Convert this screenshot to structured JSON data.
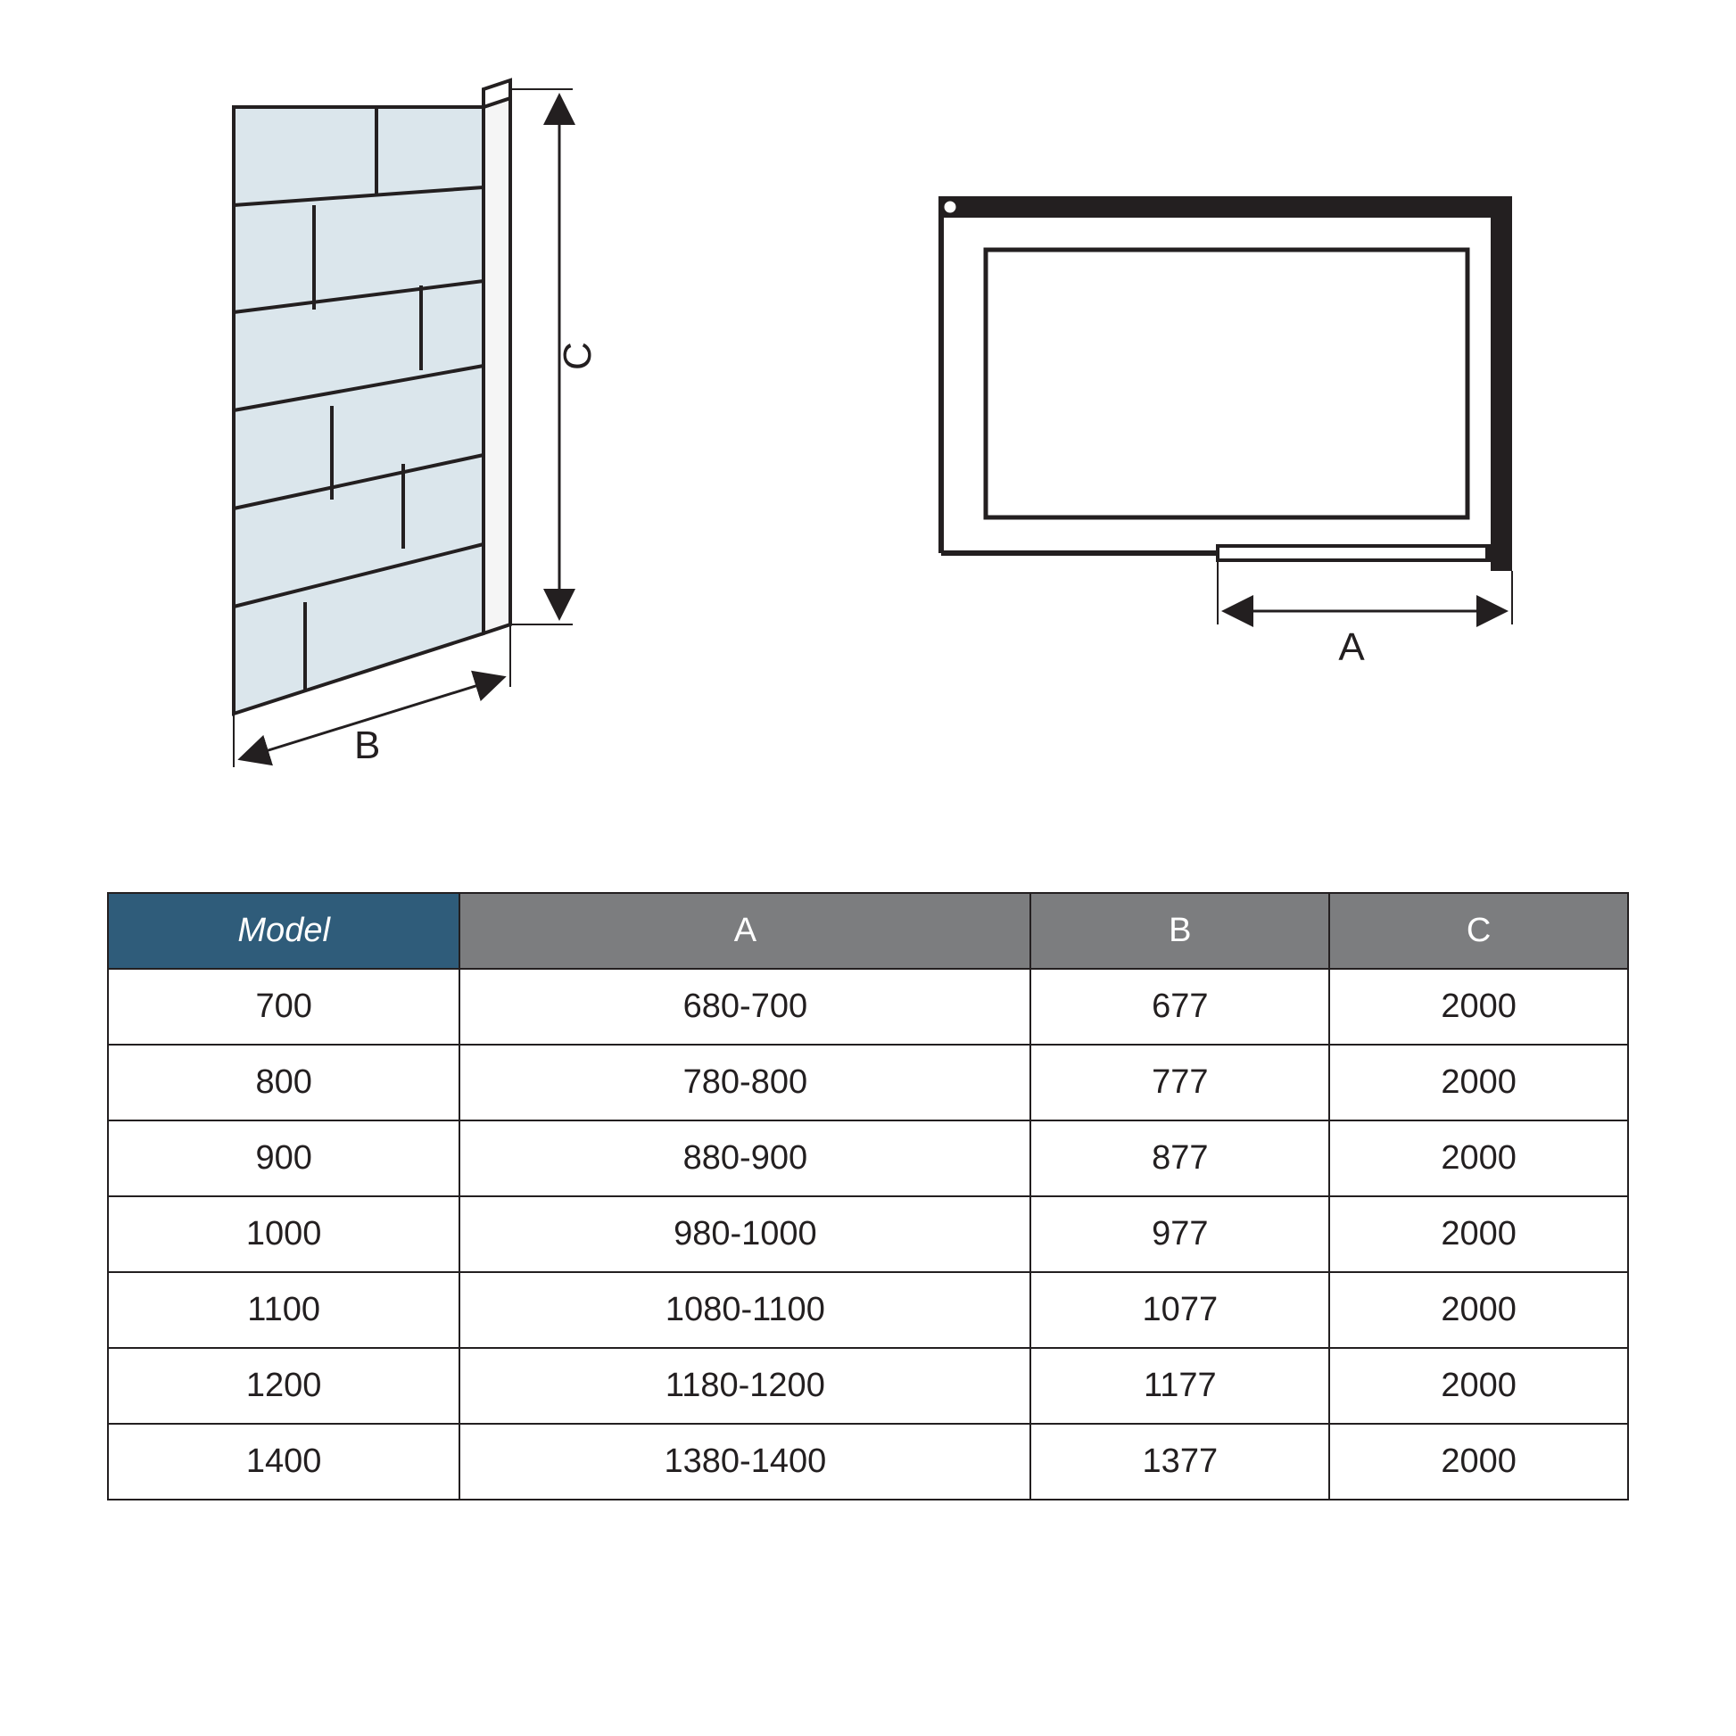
{
  "diagrams": {
    "left": {
      "label_b": "B",
      "label_c": "C",
      "panel_fill": "#dbe6ec",
      "panel_stroke": "#231f20",
      "dim_stroke": "#231f20",
      "font_size": 44
    },
    "right": {
      "label_a": "A",
      "fill": "#ffffff",
      "stroke": "#231f20",
      "dim_stroke": "#231f20",
      "font_size": 44
    }
  },
  "table": {
    "header_model_bg": "#2f5c7a",
    "header_dim_bg": "#7c7d7f",
    "header_fg": "#ffffff",
    "cell_fg": "#231f20",
    "border_color": "#231f20",
    "font_size": 38,
    "columns": [
      "Model",
      "A",
      "B",
      "C"
    ],
    "rows": [
      [
        "700",
        "680-700",
        "677",
        "2000"
      ],
      [
        "800",
        "780-800",
        "777",
        "2000"
      ],
      [
        "900",
        "880-900",
        "877",
        "2000"
      ],
      [
        "1000",
        "980-1000",
        "977",
        "2000"
      ],
      [
        "1100",
        "1080-1100",
        "1077",
        "2000"
      ],
      [
        "1200",
        "1180-1200",
        "1177",
        "2000"
      ],
      [
        "1400",
        "1380-1400",
        "1377",
        "2000"
      ]
    ]
  }
}
